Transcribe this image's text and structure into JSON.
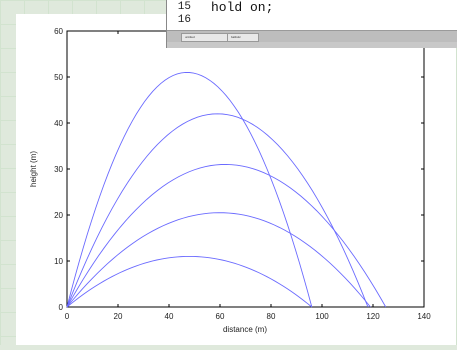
{
  "editor": {
    "lines": [
      {
        "number": "15",
        "code": "hold on;"
      },
      {
        "number": "16",
        "code": ""
      }
    ],
    "tabs": [
      "untitled",
      "ballistic"
    ]
  },
  "chart_data": {
    "type": "line",
    "xlabel": "distance (m)",
    "ylabel": "height (m)",
    "xlim": [
      0,
      140
    ],
    "ylim": [
      0,
      60
    ],
    "xticks": [
      0,
      20,
      40,
      60,
      80,
      100,
      120,
      140
    ],
    "yticks": [
      0,
      10,
      20,
      30,
      40,
      50,
      60
    ],
    "line_color": "#6b6bff",
    "grid": false,
    "series": [
      {
        "apex_x": 47,
        "apex_y": 51,
        "range": 96
      },
      {
        "apex_x": 59,
        "apex_y": 42,
        "range": 118
      },
      {
        "apex_x": 62,
        "apex_y": 31,
        "range": 125
      },
      {
        "apex_x": 60,
        "apex_y": 20.5,
        "range": 119
      },
      {
        "apex_x": 48,
        "apex_y": 11,
        "range": 96
      }
    ]
  }
}
